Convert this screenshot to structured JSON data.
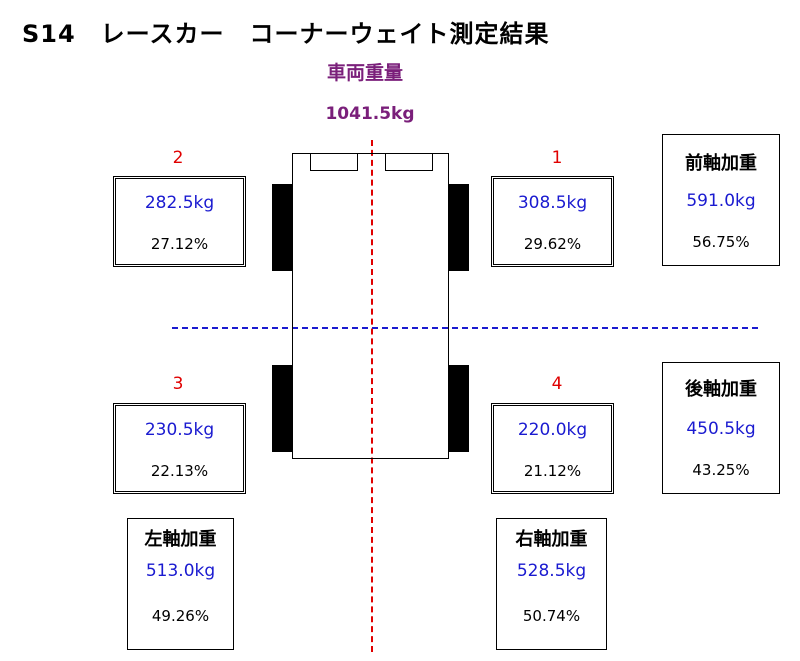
{
  "title": "S14　レースカー　コーナーウェイト測定結果",
  "total": {
    "label": "車両重量",
    "value": "1041.5kg"
  },
  "corners": {
    "c1": {
      "num": "1",
      "kg": "308.5kg",
      "pct": "29.62%"
    },
    "c2": {
      "num": "2",
      "kg": "282.5kg",
      "pct": "27.12%"
    },
    "c3": {
      "num": "3",
      "kg": "230.5kg",
      "pct": "22.13%"
    },
    "c4": {
      "num": "4",
      "kg": "220.0kg",
      "pct": "21.12%"
    }
  },
  "axles": {
    "front": {
      "label": "前軸加重",
      "kg": "591.0kg",
      "pct": "56.75%"
    },
    "rear": {
      "label": "後軸加重",
      "kg": "450.5kg",
      "pct": "43.25%"
    },
    "left": {
      "label": "左軸加重",
      "kg": "513.0kg",
      "pct": "49.26%"
    },
    "right": {
      "label": "右軸加重",
      "kg": "528.5kg",
      "pct": "50.74%"
    }
  },
  "colors": {
    "weight": "#1a1ad0",
    "corner_number": "#e00000",
    "total": "#7a1f7a",
    "center_line": "#e00000",
    "axle_line": "#1a1ad0"
  }
}
